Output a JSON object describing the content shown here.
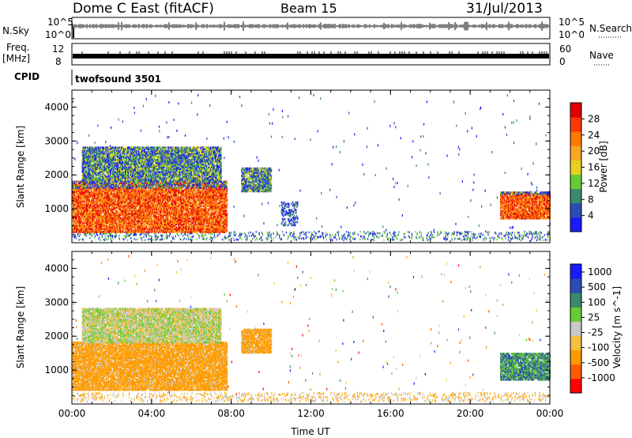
{
  "header": {
    "title": "Dome C East (fitACF)",
    "beam": "Beam 15",
    "date": "31/Jul/2013"
  },
  "status_strips": {
    "nsky": {
      "label": "N.Sky",
      "top_tick": "10^5",
      "bottom_tick": "10^0"
    },
    "nsearch": {
      "label": "N.Search",
      "top_tick": "10^5",
      "bottom_tick": "10^0"
    },
    "freq": {
      "label_line1": "Freq.",
      "label_line2": "[MHz]",
      "left_tick_top": "12",
      "left_tick_bottom": "8"
    },
    "nave": {
      "label": "Nave",
      "right_tick_top": "60",
      "right_tick_bottom": "0"
    },
    "cpid": {
      "label": "CPID",
      "program": "twofsound 3501"
    }
  },
  "colors": {
    "power_scale": [
      "#1a1aff",
      "#2a4db3",
      "#3a8a6a",
      "#66cc33",
      "#e8d020",
      "#f5a623",
      "#ff7a00",
      "#ff3a00",
      "#e00000"
    ],
    "velocity_scale": [
      "#ff0000",
      "#ff5a00",
      "#ff9a00",
      "#f5c040",
      "#c8c8c8",
      "#66cc33",
      "#3a8a6a",
      "#2a4db3",
      "#1a1aff"
    ]
  },
  "chart_data": [
    {
      "type": "heatmap",
      "title": "",
      "xlabel": "",
      "ylabel": "Slant Range [km]",
      "xlim": [
        0,
        24
      ],
      "ylim": [
        0,
        4500
      ],
      "x_tick_labels": [
        "00:00",
        "04:00",
        "08:00",
        "12:00",
        "16:00",
        "20:00",
        "00:00"
      ],
      "y_tick_labels": [
        "1000",
        "2000",
        "3000",
        "4000"
      ],
      "y_ticks": [
        1000,
        2000,
        3000,
        4000
      ],
      "colorbar": {
        "label": "Power [dB]",
        "ticks": [
          "4",
          "8",
          "12",
          "16",
          "20",
          "24",
          "28"
        ],
        "range": [
          0,
          32
        ]
      },
      "echo_regions": [
        {
          "t0": 0.0,
          "t1": 7.8,
          "r0": 300,
          "r1": 1800,
          "level": "high"
        },
        {
          "t0": 0.5,
          "t1": 7.5,
          "r0": 1800,
          "r1": 2800,
          "level": "mid"
        },
        {
          "t0": 8.5,
          "t1": 10.0,
          "r0": 1500,
          "r1": 2200,
          "level": "mid"
        },
        {
          "t0": 10.5,
          "t1": 11.3,
          "r0": 500,
          "r1": 1200,
          "level": "low"
        },
        {
          "t0": 21.5,
          "t1": 24.0,
          "r0": 700,
          "r1": 1500,
          "level": "high"
        }
      ]
    },
    {
      "type": "heatmap",
      "title": "",
      "xlabel": "Time UT",
      "ylabel": "Slant Range [km]",
      "xlim": [
        0,
        24
      ],
      "ylim": [
        0,
        4500
      ],
      "x_tick_labels": [
        "00:00",
        "04:00",
        "08:00",
        "12:00",
        "16:00",
        "20:00",
        "00:00"
      ],
      "y_tick_labels": [
        "1000",
        "2000",
        "3000",
        "4000"
      ],
      "y_ticks": [
        1000,
        2000,
        3000,
        4000
      ],
      "colorbar": {
        "label": "Velocity [m s^-1]",
        "ticks": [
          "1000",
          "500",
          "100",
          "25",
          "-25",
          "-100",
          "-500",
          "-1000"
        ]
      },
      "echo_regions": [
        {
          "t0": 0.0,
          "t1": 7.8,
          "r0": 400,
          "r1": 1800,
          "level": "negative"
        },
        {
          "t0": 0.5,
          "t1": 7.5,
          "r0": 1800,
          "r1": 2800,
          "level": "near-zero"
        },
        {
          "t0": 8.5,
          "t1": 10.0,
          "r0": 1500,
          "r1": 2200,
          "level": "negative"
        },
        {
          "t0": 21.5,
          "t1": 24.0,
          "r0": 700,
          "r1": 1500,
          "level": "positive"
        }
      ]
    }
  ]
}
